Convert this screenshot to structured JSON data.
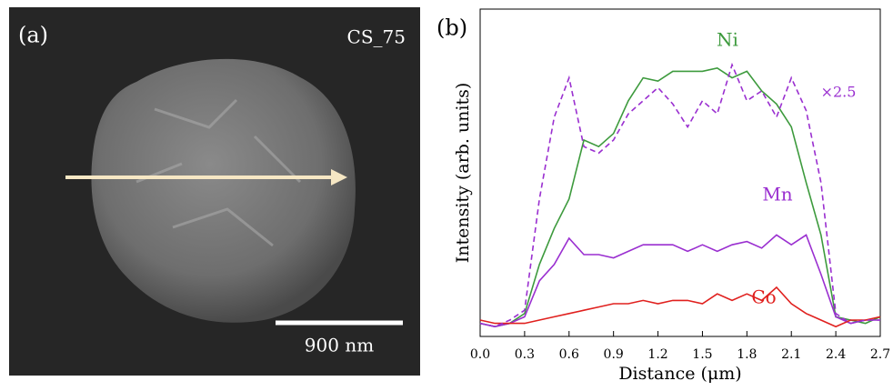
{
  "image_panel": {
    "label": "(a)",
    "sample": "CS_75",
    "scale_bar": "900 nm"
  },
  "chart_data": {
    "type": "line",
    "panel_label": "(b)",
    "xlabel": "Distance (μm)",
    "ylabel": "Intensity (arb. units)",
    "x": [
      0,
      0.1,
      0.2,
      0.3,
      0.4,
      0.5,
      0.6,
      0.7,
      0.8,
      0.9,
      1.0,
      1.1,
      1.2,
      1.3,
      1.4,
      1.5,
      1.6,
      1.7,
      1.8,
      1.9,
      2.0,
      2.1,
      2.2,
      2.3,
      2.4,
      2.5,
      2.6,
      2.7
    ],
    "xlim": [
      0,
      2.7
    ],
    "xticks": [
      {
        "value": 0,
        "label": "0.0"
      },
      0.3,
      0.6,
      0.9,
      1.2,
      1.5,
      1.8,
      2.1,
      2.4,
      2.7
    ],
    "ylim": [
      0,
      100
    ],
    "series": [
      {
        "name": "Ni",
        "color": "#3d9a3d",
        "dash": false,
        "values": [
          4,
          3,
          4,
          7,
          22,
          33,
          42,
          60,
          58,
          62,
          72,
          79,
          78,
          81,
          81,
          81,
          82,
          79,
          81,
          75,
          71,
          64,
          47,
          31,
          6,
          5,
          4,
          6
        ]
      },
      {
        "name": "Mn",
        "color": "#9a2fd0",
        "dash": false,
        "values": [
          4,
          3,
          4,
          6,
          17,
          22,
          30,
          25,
          25,
          24,
          26,
          28,
          28,
          28,
          26,
          28,
          26,
          28,
          29,
          27,
          31,
          28,
          31,
          19,
          6,
          4,
          5,
          5
        ]
      },
      {
        "name": "Co",
        "color": "#e0201e",
        "dash": false,
        "values": [
          5,
          4,
          4,
          4,
          5,
          6,
          7,
          8,
          9,
          10,
          10,
          11,
          10,
          11,
          11,
          10,
          13,
          11,
          13,
          11,
          15,
          10,
          7,
          5,
          3,
          5,
          5,
          6
        ]
      },
      {
        "name": "×2.5",
        "color": "#9a2fd0",
        "dash": true,
        "values": [
          4,
          3,
          5,
          8,
          42,
          67,
          79,
          58,
          56,
          60,
          68,
          72,
          76,
          71,
          64,
          72,
          68,
          83,
          72,
          75,
          67,
          79,
          69,
          47,
          7,
          4,
          5,
          5
        ]
      }
    ]
  }
}
